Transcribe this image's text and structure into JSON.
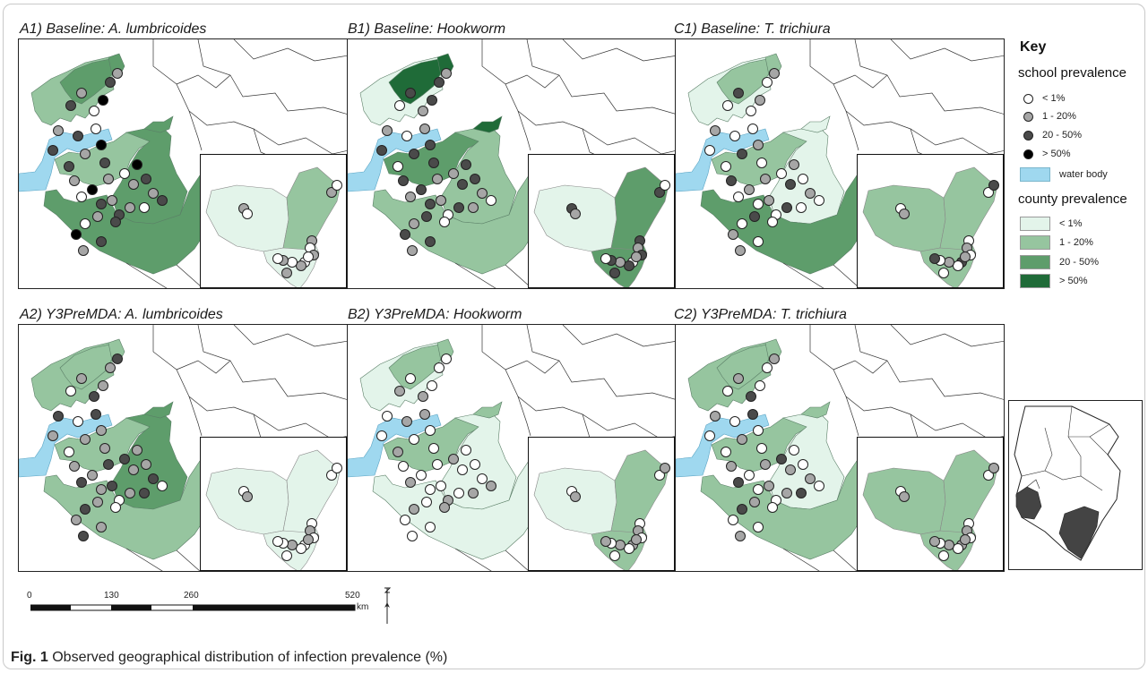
{
  "colors": {
    "county_lt1": "#e3f4ea",
    "county_1_20": "#96c59f",
    "county_20_50": "#5e9d6b",
    "county_gt50": "#1f6b38",
    "water": "#9fd8ef",
    "school_lt1": "#ffffff",
    "school_1_20": "#a6a6a6",
    "school_20_50": "#4a4a4a",
    "school_gt50": "#000000"
  },
  "panels": [
    {
      "id": "A1",
      "title": "A1) Baseline: A. lumbricoides",
      "counties": {
        "w": "1_20",
        "c": "20_50",
        "e": "20_50",
        "n": "1_20",
        "nn": "20_50",
        "ne": "20_50",
        "kw": "lt1",
        "kn": "1_20",
        "ke": "lt1"
      },
      "school_mix": [
        "20_50",
        "1_20",
        "20_50",
        "1_20",
        "lt1",
        "gt50"
      ],
      "inset_mix": [
        "1_20",
        "lt1",
        "1_20",
        "lt1"
      ]
    },
    {
      "id": "B1",
      "title": "B1) Baseline: Hookworm",
      "counties": {
        "w": "20_50",
        "c": "1_20",
        "e": "1_20",
        "n": "lt1",
        "nn": "gt50",
        "ne": "gt50",
        "kw": "lt1",
        "kn": "20_50",
        "ke": "20_50"
      },
      "school_mix": [
        "20_50",
        "1_20",
        "lt1",
        "20_50",
        "1_20",
        "20_50"
      ],
      "inset_mix": [
        "20_50",
        "1_20",
        "20_50",
        "lt1"
      ]
    },
    {
      "id": "C1",
      "title": "C1) Baseline: T. trichiura",
      "counties": {
        "w": "1_20",
        "c": "lt1",
        "e": "20_50",
        "n": "lt1",
        "nn": "1_20",
        "ne": "lt1",
        "kw": "1_20",
        "kn": "1_20",
        "ke": "1_20"
      },
      "school_mix": [
        "lt1",
        "1_20",
        "lt1",
        "20_50",
        "lt1",
        "1_20"
      ],
      "inset_mix": [
        "lt1",
        "1_20",
        "lt1",
        "20_50"
      ]
    },
    {
      "id": "A2",
      "title": "A2) Y3PreMDA: A. lumbricoides",
      "counties": {
        "w": "1_20",
        "c": "20_50",
        "e": "1_20",
        "n": "1_20",
        "nn": "1_20",
        "ne": "20_50",
        "kw": "lt1",
        "kn": "lt1",
        "ke": "lt1"
      },
      "school_mix": [
        "1_20",
        "20_50",
        "lt1",
        "1_20",
        "20_50",
        "1_20"
      ],
      "inset_mix": [
        "lt1",
        "1_20",
        "lt1",
        "lt1"
      ]
    },
    {
      "id": "B2",
      "title": "B2) Y3PreMDA: Hookworm",
      "counties": {
        "w": "1_20",
        "c": "lt1",
        "e": "lt1",
        "n": "lt1",
        "nn": "1_20",
        "ne": "1_20",
        "kw": "lt1",
        "kn": "1_20",
        "ke": "1_20"
      },
      "school_mix": [
        "lt1",
        "lt1",
        "1_20",
        "lt1",
        "1_20",
        "lt1"
      ],
      "inset_mix": [
        "lt1",
        "1_20",
        "lt1",
        "1_20"
      ]
    },
    {
      "id": "C2",
      "title": "C2) Y3PreMDA: T. trichiura",
      "counties": {
        "w": "1_20",
        "c": "lt1",
        "e": "1_20",
        "n": "1_20",
        "nn": "1_20",
        "ne": "1_20",
        "kw": "1_20",
        "kn": "1_20",
        "ke": "1_20"
      },
      "school_mix": [
        "lt1",
        "1_20",
        "lt1",
        "1_20",
        "20_50",
        "lt1"
      ],
      "inset_mix": [
        "lt1",
        "1_20",
        "lt1",
        "1_20"
      ]
    }
  ],
  "key": {
    "title": "Key",
    "school_heading": "school prevalence",
    "school_items": [
      {
        "label": "< 1%",
        "color": "school_lt1"
      },
      {
        "label": "1 - 20%",
        "color": "school_1_20"
      },
      {
        "label": "20 - 50%",
        "color": "school_20_50"
      },
      {
        "label": "> 50%",
        "color": "school_gt50"
      }
    ],
    "water_label": "water body",
    "county_heading": "county prevalence",
    "county_items": [
      {
        "label": "< 1%",
        "color": "county_lt1"
      },
      {
        "label": "1 - 20%",
        "color": "county_1_20"
      },
      {
        "label": "20 - 50%",
        "color": "county_20_50"
      },
      {
        "label": "> 50%",
        "color": "county_gt50"
      }
    ]
  },
  "scale": {
    "ticks": [
      "0",
      "130",
      "260",
      "520"
    ],
    "unit": "km"
  },
  "caption": {
    "label": "Fig. 1",
    "text": " Observed geographical distribution of infection prevalence (%)"
  }
}
